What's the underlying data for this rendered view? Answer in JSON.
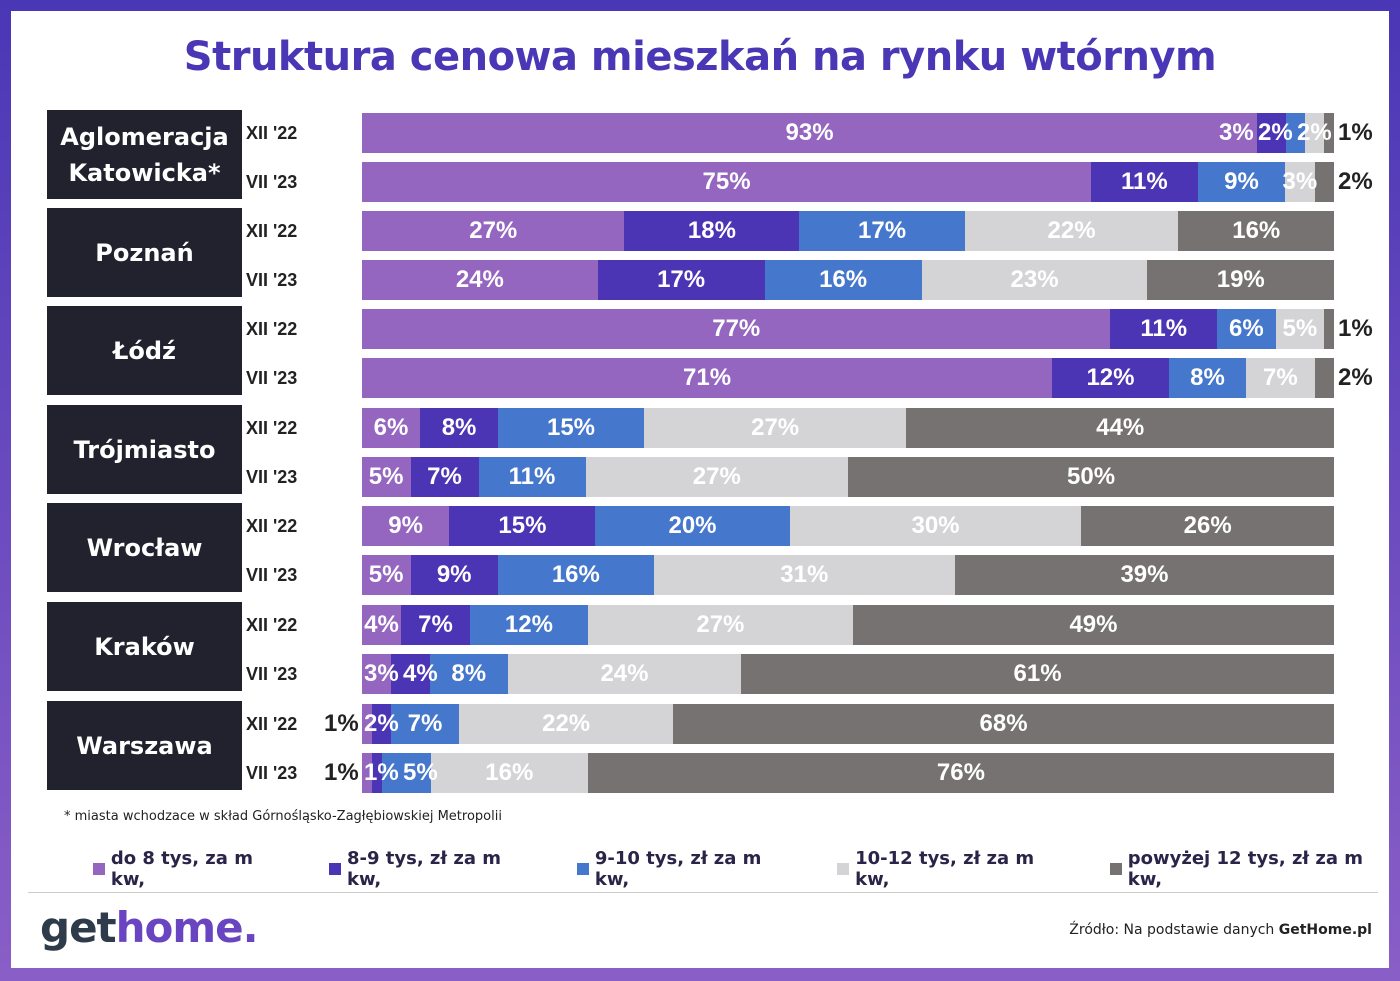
{
  "chart_data": {
    "type": "bar",
    "orientation": "horizontal-stacked-100",
    "title": "Struktura cenowa mieszkań na rynku wtórnym",
    "legend": [
      "do 8 tys, za m kw,",
      "8-9 tys, zł za m kw,",
      "9-10 tys, zł za m kw,",
      "10-12 tys, zł za m kw,",
      "powyżej 12 tys, zł za m kw,"
    ],
    "legend_position": "bottom",
    "colors": [
      "#9466c0",
      "#4b35b5",
      "#4577cc",
      "#d4d4d6",
      "#767272"
    ],
    "groups": [
      {
        "city": "Aglomeracja Katowicka*",
        "rows": [
          {
            "period": "XII '22",
            "values": [
              93,
              3,
              2,
              2,
              1
            ]
          },
          {
            "period": "VII '23",
            "values": [
              75,
              11,
              9,
              3,
              2
            ]
          }
        ]
      },
      {
        "city": "Poznań",
        "rows": [
          {
            "period": "XII '22",
            "values": [
              27,
              18,
              17,
              22,
              16
            ]
          },
          {
            "period": "VII '23",
            "values": [
              24,
              17,
              16,
              23,
              19
            ]
          }
        ]
      },
      {
        "city": "Łódź",
        "rows": [
          {
            "period": "XII '22",
            "values": [
              77,
              11,
              6,
              5,
              1
            ]
          },
          {
            "period": "VII '23",
            "values": [
              71,
              12,
              8,
              7,
              2
            ]
          }
        ]
      },
      {
        "city": "Trójmiasto",
        "rows": [
          {
            "period": "XII '22",
            "values": [
              6,
              8,
              15,
              27,
              44
            ]
          },
          {
            "period": "VII '23",
            "values": [
              5,
              7,
              11,
              27,
              50
            ]
          }
        ]
      },
      {
        "city": "Wrocław",
        "rows": [
          {
            "period": "XII '22",
            "values": [
              9,
              15,
              20,
              30,
              26
            ]
          },
          {
            "period": "VII '23",
            "values": [
              5,
              9,
              16,
              31,
              39
            ]
          }
        ]
      },
      {
        "city": "Kraków",
        "rows": [
          {
            "period": "XII '22",
            "values": [
              4,
              7,
              12,
              27,
              49
            ]
          },
          {
            "period": "VII '23",
            "values": [
              3,
              4,
              8,
              24,
              61
            ]
          }
        ]
      },
      {
        "city": "Warszawa",
        "rows": [
          {
            "period": "XII '22",
            "values": [
              1,
              2,
              7,
              22,
              68
            ]
          },
          {
            "period": "VII '23",
            "values": [
              1,
              1,
              5,
              16,
              76
            ]
          }
        ]
      }
    ]
  },
  "footnote": "* miasta wchodzace w skład Górnośląsko-Zagłębiowskiej Metropolii",
  "logo": {
    "part1": "get",
    "part2": "home."
  },
  "source": {
    "prefix": "Źródło: Na podstawie danych ",
    "brand": "GetHome.pl"
  }
}
